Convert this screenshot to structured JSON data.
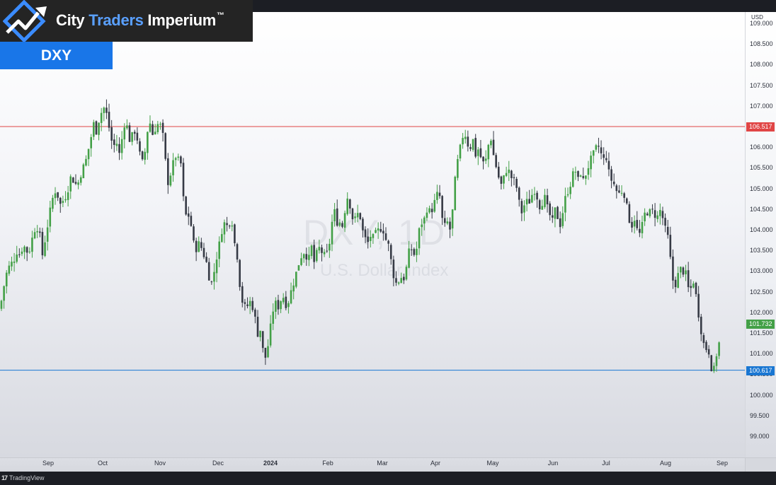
{
  "branding": {
    "part1": "City ",
    "part2": "Traders",
    "part3": " Imperium",
    "tm": "™"
  },
  "ticker": "DXY",
  "watermark": {
    "symbol": "DXY, 1D",
    "description": "U.S. Dollar Index"
  },
  "currency_label": "USD",
  "footer": {
    "platform": "TradingView",
    "logo": "17"
  },
  "colors": {
    "up": "#43a047",
    "down": "#363a45",
    "resistance": "#e04545",
    "support": "#1976d2",
    "last_price": "#43a047"
  },
  "levels": {
    "resistance": "106.517",
    "support": "100.617",
    "last": "101.732"
  },
  "chart_data": {
    "type": "candlestick",
    "title": "DXY",
    "ylabel": "USD",
    "ylim": [
      98.6,
      109.2
    ],
    "y_ticks": [
      "99.000",
      "99.500",
      "100.000",
      "100.500",
      "101.000",
      "101.500",
      "102.000",
      "102.500",
      "103.000",
      "103.500",
      "104.000",
      "104.500",
      "105.000",
      "105.500",
      "106.000",
      "106.500",
      "107.000",
      "107.500",
      "108.000",
      "108.500",
      "109.000"
    ],
    "x_ticks": [
      {
        "label": "Sep",
        "x": 68
      },
      {
        "label": "Oct",
        "x": 145
      },
      {
        "label": "Nov",
        "x": 226
      },
      {
        "label": "Dec",
        "x": 308
      },
      {
        "label": "2024",
        "x": 382,
        "bold": true
      },
      {
        "label": "Feb",
        "x": 463
      },
      {
        "label": "Mar",
        "x": 540
      },
      {
        "label": "Apr",
        "x": 615
      },
      {
        "label": "May",
        "x": 696
      },
      {
        "label": "Jun",
        "x": 781
      },
      {
        "label": "Jul",
        "x": 856
      },
      {
        "label": "Aug",
        "x": 940
      },
      {
        "label": "Sep",
        "x": 1020
      }
    ],
    "horizontal_lines": [
      {
        "name": "resistance",
        "value": 106.517
      },
      {
        "name": "support",
        "value": 100.617
      }
    ],
    "last_price": 101.732,
    "series_close": [
      [
        0,
        102.1
      ],
      [
        4,
        102.5
      ],
      [
        8,
        102.9
      ],
      [
        12,
        103.1
      ],
      [
        16,
        103.2
      ],
      [
        20,
        103.3
      ],
      [
        24,
        103.5
      ],
      [
        28,
        103.4
      ],
      [
        32,
        103.6
      ],
      [
        36,
        103.6
      ],
      [
        40,
        103.4
      ],
      [
        44,
        103.7
      ],
      [
        48,
        104.0
      ],
      [
        52,
        104.1
      ],
      [
        56,
        103.9
      ],
      [
        60,
        103.4
      ],
      [
        64,
        103.8
      ],
      [
        68,
        104.2
      ],
      [
        72,
        104.6
      ],
      [
        76,
        104.9
      ],
      [
        80,
        105.0
      ],
      [
        84,
        104.6
      ],
      [
        88,
        104.7
      ],
      [
        92,
        104.8
      ],
      [
        96,
        105.0
      ],
      [
        100,
        105.3
      ],
      [
        104,
        105.2
      ],
      [
        108,
        105.1
      ],
      [
        112,
        105.2
      ],
      [
        116,
        105.5
      ],
      [
        120,
        105.6
      ],
      [
        124,
        105.9
      ],
      [
        128,
        106.2
      ],
      [
        132,
        106.6
      ],
      [
        136,
        106.4
      ],
      [
        140,
        106.7
      ],
      [
        144,
        106.9
      ],
      [
        148,
        107.0
      ],
      [
        152,
        106.7
      ],
      [
        156,
        106.3
      ],
      [
        160,
        106.0
      ],
      [
        164,
        106.2
      ],
      [
        168,
        105.8
      ],
      [
        172,
        106.2
      ],
      [
        176,
        106.6
      ],
      [
        180,
        106.5
      ],
      [
        184,
        106.1
      ],
      [
        188,
        106.4
      ],
      [
        192,
        106.4
      ],
      [
        196,
        106.0
      ],
      [
        200,
        105.6
      ],
      [
        204,
        105.8
      ],
      [
        208,
        106.4
      ],
      [
        212,
        106.6
      ],
      [
        216,
        106.3
      ],
      [
        220,
        106.5
      ],
      [
        224,
        106.6
      ],
      [
        228,
        106.5
      ],
      [
        232,
        106.1
      ],
      [
        236,
        105.1
      ],
      [
        240,
        105.3
      ],
      [
        244,
        105.6
      ],
      [
        248,
        105.8
      ],
      [
        252,
        105.7
      ],
      [
        256,
        105.6
      ],
      [
        260,
        104.5
      ],
      [
        264,
        104.3
      ],
      [
        268,
        104.4
      ],
      [
        272,
        103.8
      ],
      [
        276,
        103.5
      ],
      [
        280,
        103.7
      ],
      [
        284,
        103.6
      ],
      [
        288,
        103.4
      ],
      [
        292,
        103.2
      ],
      [
        296,
        102.8
      ],
      [
        300,
        102.7
      ],
      [
        304,
        103.2
      ],
      [
        308,
        103.5
      ],
      [
        312,
        103.9
      ],
      [
        316,
        104.2
      ],
      [
        320,
        104.1
      ],
      [
        324,
        104.2
      ],
      [
        328,
        104.2
      ],
      [
        332,
        103.6
      ],
      [
        336,
        103.3
      ],
      [
        340,
        102.4
      ],
      [
        344,
        102.2
      ],
      [
        348,
        102.1
      ],
      [
        352,
        102.3
      ],
      [
        356,
        102.2
      ],
      [
        360,
        101.9
      ],
      [
        364,
        101.5
      ],
      [
        368,
        101.6
      ],
      [
        372,
        101.0
      ],
      [
        376,
        100.9
      ],
      [
        380,
        101.4
      ],
      [
        384,
        101.9
      ],
      [
        388,
        102.3
      ],
      [
        392,
        102.1
      ],
      [
        396,
        102.3
      ],
      [
        400,
        102.4
      ],
      [
        404,
        102.2
      ],
      [
        408,
        102.3
      ],
      [
        412,
        102.6
      ],
      [
        416,
        102.8
      ],
      [
        420,
        103.1
      ],
      [
        424,
        103.3
      ],
      [
        428,
        103.5
      ],
      [
        432,
        103.4
      ],
      [
        436,
        103.3
      ],
      [
        440,
        103.6
      ],
      [
        444,
        103.2
      ],
      [
        448,
        103.5
      ],
      [
        452,
        103.6
      ],
      [
        456,
        103.4
      ],
      [
        460,
        103.4
      ],
      [
        464,
        103.5
      ],
      [
        468,
        104.1
      ],
      [
        472,
        104.5
      ],
      [
        476,
        104.2
      ],
      [
        480,
        104.2
      ],
      [
        484,
        104.1
      ],
      [
        488,
        104.6
      ],
      [
        492,
        104.9
      ],
      [
        496,
        104.4
      ],
      [
        500,
        104.2
      ],
      [
        504,
        104.4
      ],
      [
        508,
        104.4
      ],
      [
        512,
        104.0
      ],
      [
        516,
        103.8
      ],
      [
        520,
        103.7
      ],
      [
        524,
        103.9
      ],
      [
        528,
        103.8
      ],
      [
        532,
        104.0
      ],
      [
        536,
        104.0
      ],
      [
        540,
        104.1
      ],
      [
        544,
        103.8
      ],
      [
        548,
        103.7
      ],
      [
        552,
        103.3
      ],
      [
        556,
        102.9
      ],
      [
        560,
        102.7
      ],
      [
        564,
        102.8
      ],
      [
        568,
        102.9
      ],
      [
        572,
        102.8
      ],
      [
        576,
        103.4
      ],
      [
        580,
        103.6
      ],
      [
        584,
        103.4
      ],
      [
        588,
        103.5
      ],
      [
        592,
        104.0
      ],
      [
        596,
        104.2
      ],
      [
        600,
        104.3
      ],
      [
        604,
        104.6
      ],
      [
        608,
        104.4
      ],
      [
        612,
        104.6
      ],
      [
        616,
        104.8
      ],
      [
        620,
        105.0
      ],
      [
        624,
        104.3
      ],
      [
        628,
        104.1
      ],
      [
        632,
        104.2
      ],
      [
        636,
        104.0
      ],
      [
        640,
        104.6
      ],
      [
        644,
        105.5
      ],
      [
        648,
        105.8
      ],
      [
        652,
        106.2
      ],
      [
        656,
        106.4
      ],
      [
        660,
        106.1
      ],
      [
        664,
        106.0
      ],
      [
        668,
        106.2
      ],
      [
        672,
        105.8
      ],
      [
        676,
        106.0
      ],
      [
        680,
        105.7
      ],
      [
        684,
        105.6
      ],
      [
        688,
        105.8
      ],
      [
        692,
        106.4
      ],
      [
        696,
        105.9
      ],
      [
        700,
        105.6
      ],
      [
        704,
        105.3
      ],
      [
        708,
        105.1
      ],
      [
        712,
        105.3
      ],
      [
        716,
        105.5
      ],
      [
        720,
        105.4
      ],
      [
        724,
        105.2
      ],
      [
        728,
        105.2
      ],
      [
        732,
        104.8
      ],
      [
        736,
        104.4
      ],
      [
        740,
        104.6
      ],
      [
        744,
        104.7
      ],
      [
        748,
        104.7
      ],
      [
        752,
        104.9
      ],
      [
        756,
        105.0
      ],
      [
        760,
        104.7
      ],
      [
        764,
        104.5
      ],
      [
        768,
        104.9
      ],
      [
        772,
        104.6
      ],
      [
        776,
        104.4
      ],
      [
        780,
        104.2
      ],
      [
        784,
        104.5
      ],
      [
        788,
        104.3
      ],
      [
        792,
        104.1
      ],
      [
        796,
        104.6
      ],
      [
        800,
        104.9
      ],
      [
        804,
        105.0
      ],
      [
        808,
        105.3
      ],
      [
        812,
        105.5
      ],
      [
        816,
        105.2
      ],
      [
        820,
        105.4
      ],
      [
        824,
        105.2
      ],
      [
        828,
        105.4
      ],
      [
        832,
        105.6
      ],
      [
        836,
        105.8
      ],
      [
        840,
        105.9
      ],
      [
        844,
        106.1
      ],
      [
        848,
        105.9
      ],
      [
        852,
        105.7
      ],
      [
        856,
        105.8
      ],
      [
        860,
        105.4
      ],
      [
        864,
        105.2
      ],
      [
        868,
        105.1
      ],
      [
        872,
        104.9
      ],
      [
        876,
        104.9
      ],
      [
        880,
        105.0
      ],
      [
        884,
        104.7
      ],
      [
        888,
        104.3
      ],
      [
        892,
        104.1
      ],
      [
        896,
        104.3
      ],
      [
        900,
        104.0
      ],
      [
        904,
        103.9
      ],
      [
        908,
        104.2
      ],
      [
        912,
        104.5
      ],
      [
        916,
        104.4
      ],
      [
        920,
        104.5
      ],
      [
        924,
        104.4
      ],
      [
        928,
        104.3
      ],
      [
        932,
        104.5
      ],
      [
        936,
        104.3
      ],
      [
        940,
        104.0
      ],
      [
        944,
        103.8
      ],
      [
        948,
        103.1
      ],
      [
        952,
        102.6
      ],
      [
        956,
        102.8
      ],
      [
        960,
        103.1
      ],
      [
        964,
        103.0
      ],
      [
        968,
        103.0
      ],
      [
        972,
        102.6
      ],
      [
        976,
        102.6
      ],
      [
        980,
        102.8
      ],
      [
        984,
        102.3
      ],
      [
        988,
        101.8
      ],
      [
        992,
        101.4
      ],
      [
        996,
        101.1
      ],
      [
        1000,
        101.2
      ],
      [
        1004,
        100.7
      ],
      [
        1008,
        100.6
      ],
      [
        1012,
        101.0
      ],
      [
        1016,
        101.3
      ],
      [
        1018,
        101.73
      ]
    ]
  }
}
